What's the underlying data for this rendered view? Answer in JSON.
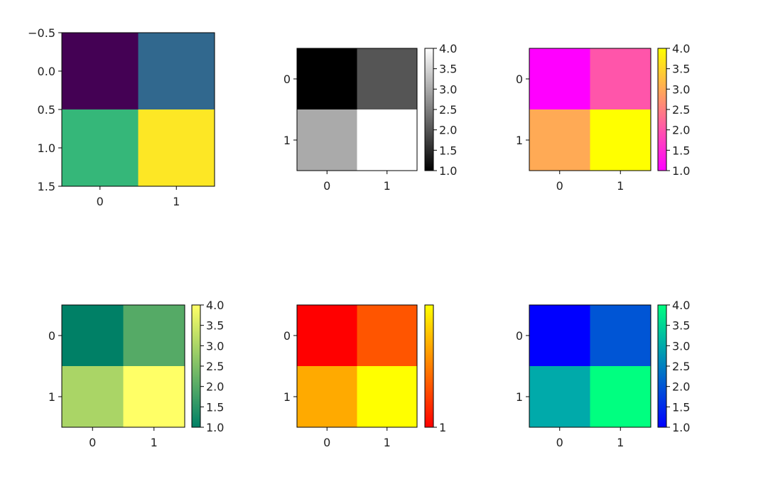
{
  "chart_data": [
    {
      "type": "heatmap",
      "matrix": [
        [
          1,
          2
        ],
        [
          3,
          4
        ]
      ],
      "cmap": "viridis",
      "cell_colors": [
        [
          "#440154",
          "#31688e"
        ],
        [
          "#35b779",
          "#fde725"
        ]
      ],
      "x_ticks": [
        "0",
        "1"
      ],
      "y_ticks": [
        "−0.5",
        "0.0",
        "0.5",
        "1.0",
        "1.5"
      ],
      "y_tick_values": [
        -0.5,
        0.0,
        0.5,
        1.0,
        1.5
      ],
      "colorbar": null
    },
    {
      "type": "heatmap",
      "matrix": [
        [
          1,
          2
        ],
        [
          3,
          4
        ]
      ],
      "cmap": "gray",
      "cell_colors": [
        [
          "#000000",
          "#555555"
        ],
        [
          "#aaaaaa",
          "#ffffff"
        ]
      ],
      "x_ticks": [
        "0",
        "1"
      ],
      "y_ticks": [
        "0",
        "1"
      ],
      "y_tick_values": [
        0,
        1
      ],
      "colorbar": {
        "range": [
          1.0,
          4.0
        ],
        "gradient": [
          "#000000",
          "#ffffff"
        ],
        "ticks": [
          "1.0",
          "1.5",
          "2.0",
          "2.5",
          "3.0",
          "3.5",
          "4.0"
        ],
        "tick_values": [
          1.0,
          1.5,
          2.0,
          2.5,
          3.0,
          3.5,
          4.0
        ]
      }
    },
    {
      "type": "heatmap",
      "matrix": [
        [
          1,
          2
        ],
        [
          3,
          4
        ]
      ],
      "cmap": "spring",
      "cell_colors": [
        [
          "#ff00ff",
          "#ff55aa"
        ],
        [
          "#ffaa55",
          "#ffff00"
        ]
      ],
      "x_ticks": [
        "0",
        "1"
      ],
      "y_ticks": [
        "0",
        "1"
      ],
      "y_tick_values": [
        0,
        1
      ],
      "colorbar": {
        "range": [
          1.0,
          4.0
        ],
        "gradient": [
          "#ff00ff",
          "#ffff00"
        ],
        "ticks": [
          "1.0",
          "1.5",
          "2.0",
          "2.5",
          "3.0",
          "3.5",
          "4.0"
        ],
        "tick_values": [
          1.0,
          1.5,
          2.0,
          2.5,
          3.0,
          3.5,
          4.0
        ]
      }
    },
    {
      "type": "heatmap",
      "matrix": [
        [
          1,
          2
        ],
        [
          3,
          4
        ]
      ],
      "cmap": "summer",
      "cell_colors": [
        [
          "#008066",
          "#55aa66"
        ],
        [
          "#aad566",
          "#ffff66"
        ]
      ],
      "x_ticks": [
        "0",
        "1"
      ],
      "y_ticks": [
        "0",
        "1"
      ],
      "y_tick_values": [
        0,
        1
      ],
      "colorbar": {
        "range": [
          1.0,
          4.0
        ],
        "gradient": [
          "#008066",
          "#ffff66"
        ],
        "ticks": [
          "1.0",
          "1.5",
          "2.0",
          "2.5",
          "3.0",
          "3.5",
          "4.0"
        ],
        "tick_values": [
          1.0,
          1.5,
          2.0,
          2.5,
          3.0,
          3.5,
          4.0
        ]
      }
    },
    {
      "type": "heatmap",
      "matrix": [
        [
          1,
          2
        ],
        [
          3,
          4
        ]
      ],
      "cmap": "autumn",
      "cell_colors": [
        [
          "#ff0000",
          "#ff5500"
        ],
        [
          "#ffaa00",
          "#ffff00"
        ]
      ],
      "x_ticks": [
        "0",
        "1"
      ],
      "y_ticks": [
        "0",
        "1"
      ],
      "y_tick_values": [
        0,
        1
      ],
      "colorbar": {
        "range": [
          1.0,
          4.0
        ],
        "gradient": [
          "#ff0000",
          "#ffff00"
        ],
        "ticks": [
          "1"
        ],
        "tick_values": [
          1.0
        ]
      }
    },
    {
      "type": "heatmap",
      "matrix": [
        [
          1,
          2
        ],
        [
          3,
          4
        ]
      ],
      "cmap": "winter",
      "cell_colors": [
        [
          "#0000ff",
          "#0055d5"
        ],
        [
          "#00aaaa",
          "#00ff80"
        ]
      ],
      "x_ticks": [
        "0",
        "1"
      ],
      "y_ticks": [
        "0",
        "1"
      ],
      "y_tick_values": [
        0,
        1
      ],
      "colorbar": {
        "range": [
          1.0,
          4.0
        ],
        "gradient": [
          "#0000ff",
          "#00ff80"
        ],
        "ticks": [
          "1.0",
          "1.5",
          "2.0",
          "2.5",
          "3.0",
          "3.5",
          "4.0"
        ],
        "tick_values": [
          1.0,
          1.5,
          2.0,
          2.5,
          3.0,
          3.5,
          4.0
        ]
      }
    }
  ]
}
